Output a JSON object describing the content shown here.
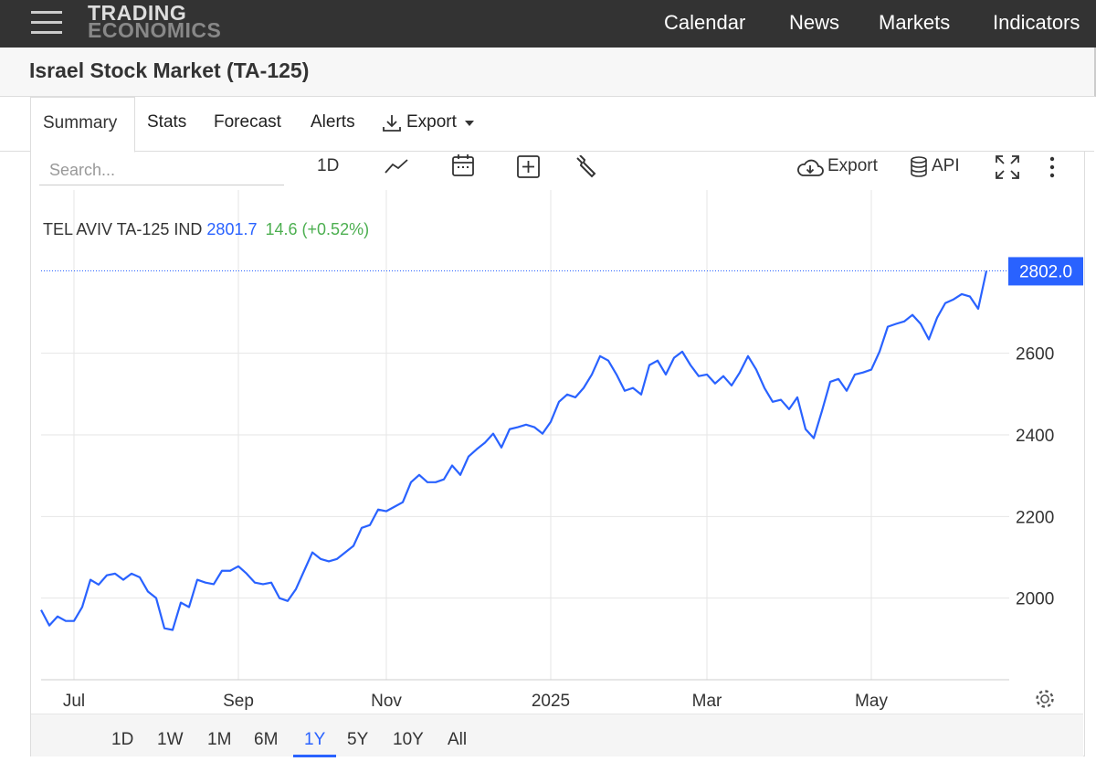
{
  "nav": {
    "brand": [
      "TRADING",
      "ECONOMICS"
    ],
    "links": [
      "Calendar",
      "News",
      "Markets",
      "Indicators"
    ]
  },
  "header": {
    "title": "Israel Stock Market (TA-125)"
  },
  "tabs": [
    "Summary",
    "Stats",
    "Forecast",
    "Alerts",
    "Export"
  ],
  "toolbar": {
    "search_placeholder": "Search...",
    "interval": "1D",
    "export": "Export",
    "api": "API"
  },
  "ranges": [
    "1D",
    "1W",
    "1M",
    "6M",
    "1Y",
    "5Y",
    "10Y",
    "All"
  ],
  "selected_range": 4,
  "chart_data": {
    "type": "line",
    "last_price": "2801.7",
    "change": "14.6 (+0.52%)",
    "price_tag": {
      "value": 2802,
      "label": "2802.0"
    },
    "xlim": [
      0,
      115
    ],
    "xticks": [
      {
        "value": 4,
        "label": "Jul"
      },
      {
        "value": 24,
        "label": "Sep"
      },
      {
        "value": 42,
        "label": "Nov"
      },
      {
        "value": 62,
        "label": "2025"
      },
      {
        "value": 81,
        "label": "Mar"
      },
      {
        "value": 101,
        "label": "May"
      }
    ],
    "ylim": [
      1800,
      3000
    ],
    "yticks": [
      2000,
      2200,
      2400,
      2600
    ],
    "grid": true,
    "series": [
      {
        "name": "TEL AVIV TA-125 IND",
        "color": "#2962ff",
        "values": [
          1971,
          1933,
          1955,
          1944,
          1944,
          1978,
          2045,
          2033,
          2056,
          2060,
          2045,
          2060,
          2051,
          2016,
          2000,
          1926,
          1922,
          1989,
          1978,
          2045,
          2038,
          2034,
          2067,
          2067,
          2078,
          2060,
          2038,
          2034,
          2038,
          2000,
          1993,
          2022,
          2067,
          2112,
          2096,
          2090,
          2096,
          2112,
          2128,
          2172,
          2179,
          2217,
          2213,
          2224,
          2235,
          2284,
          2302,
          2284,
          2284,
          2291,
          2325,
          2302,
          2347,
          2365,
          2381,
          2403,
          2369,
          2414,
          2419,
          2425,
          2419,
          2403,
          2432,
          2481,
          2499,
          2492,
          2515,
          2548,
          2593,
          2582,
          2548,
          2508,
          2515,
          2499,
          2571,
          2582,
          2548,
          2589,
          2604,
          2571,
          2544,
          2548,
          2526,
          2544,
          2521,
          2553,
          2593,
          2560,
          2515,
          2481,
          2486,
          2463,
          2492,
          2414,
          2392,
          2459,
          2530,
          2537,
          2508,
          2548,
          2553,
          2560,
          2604,
          2665,
          2672,
          2678,
          2694,
          2672,
          2634,
          2687,
          2723,
          2732,
          2745,
          2739,
          2709,
          2802
        ]
      }
    ]
  }
}
